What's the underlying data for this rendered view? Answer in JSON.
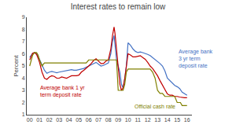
{
  "chart_data": {
    "type": "line",
    "title": "Interest rates to remain low",
    "ylabel": "Percent",
    "xlim": [
      -0.3,
      16.5
    ],
    "ylim": [
      1,
      9
    ],
    "yticks": [
      1,
      2,
      3,
      4,
      5,
      6,
      7,
      8,
      9
    ],
    "xticks": [
      {
        "value": 0,
        "label": "00"
      },
      {
        "value": 1,
        "label": "01"
      },
      {
        "value": 2,
        "label": "02"
      },
      {
        "value": 3,
        "label": "03"
      },
      {
        "value": 4,
        "label": "04"
      },
      {
        "value": 5,
        "label": "05"
      },
      {
        "value": 6,
        "label": "06"
      },
      {
        "value": 7,
        "label": "07"
      },
      {
        "value": 8,
        "label": "08"
      },
      {
        "value": 9,
        "label": "09"
      },
      10,
      11,
      12,
      13,
      14,
      15,
      16
    ],
    "grid": false,
    "series": [
      {
        "color": "#4472C4",
        "x": [
          0.0,
          0.15,
          0.3,
          0.5,
          0.7,
          0.85,
          1.0,
          1.25,
          1.5,
          1.75,
          2.0,
          2.25,
          2.5,
          2.75,
          3.0,
          3.25,
          3.5,
          3.75,
          4.0,
          4.25,
          4.5,
          4.75,
          5.0,
          5.25,
          5.5,
          5.75,
          6.0,
          6.25,
          6.5,
          6.75,
          7.0,
          7.25,
          7.5,
          7.75,
          8.0,
          8.25,
          8.42,
          8.58,
          8.67,
          8.83,
          9.0,
          9.17,
          9.33,
          9.5,
          9.67,
          9.83,
          10.0,
          10.25,
          10.5,
          10.75,
          11.0,
          11.25,
          11.5,
          11.75,
          12.0,
          12.25,
          12.5,
          12.75,
          13.0,
          13.25,
          13.5,
          13.75,
          14.0,
          14.25,
          14.5,
          14.75,
          15.0,
          15.25,
          15.5,
          15.75,
          16.0
        ],
        "values": [
          5.7,
          5.85,
          6.05,
          6.1,
          6.0,
          5.8,
          5.5,
          5.1,
          4.65,
          4.4,
          4.5,
          4.55,
          4.5,
          4.45,
          4.5,
          4.55,
          4.55,
          4.6,
          4.65,
          4.7,
          4.65,
          4.65,
          4.7,
          4.75,
          4.8,
          4.9,
          5.0,
          5.1,
          5.2,
          5.3,
          5.15,
          5.0,
          5.05,
          5.15,
          5.25,
          6.0,
          7.0,
          7.5,
          6.8,
          5.5,
          5.0,
          4.5,
          3.5,
          3.2,
          4.0,
          5.0,
          6.9,
          6.7,
          6.4,
          6.2,
          6.1,
          6.15,
          6.1,
          6.05,
          5.95,
          5.85,
          5.7,
          5.55,
          5.4,
          5.2,
          5.0,
          4.6,
          4.0,
          3.8,
          3.6,
          3.4,
          3.3,
          3.15,
          2.85,
          2.7,
          2.6
        ]
      },
      {
        "color": "#C00000",
        "x": [
          0.0,
          0.15,
          0.3,
          0.5,
          0.7,
          0.85,
          1.0,
          1.25,
          1.5,
          1.75,
          2.0,
          2.25,
          2.5,
          2.75,
          3.0,
          3.25,
          3.5,
          3.75,
          4.0,
          4.25,
          4.5,
          4.75,
          5.0,
          5.25,
          5.5,
          5.75,
          6.0,
          6.25,
          6.5,
          6.75,
          7.0,
          7.25,
          7.5,
          7.75,
          8.0,
          8.25,
          8.42,
          8.58,
          8.67,
          8.83,
          9.0,
          9.17,
          9.33,
          9.5,
          9.67,
          9.83,
          10.0,
          10.25,
          10.5,
          10.75,
          11.0,
          11.25,
          11.5,
          11.75,
          12.0,
          12.25,
          12.5,
          12.75,
          13.0,
          13.25,
          13.5,
          13.75,
          14.0,
          14.25,
          14.5,
          14.75,
          15.0,
          15.25,
          15.5,
          15.75,
          16.0
        ],
        "values": [
          5.5,
          5.75,
          6.05,
          6.1,
          5.95,
          5.65,
          5.3,
          4.5,
          4.0,
          3.9,
          4.1,
          4.2,
          4.15,
          4.0,
          4.0,
          4.1,
          4.05,
          4.0,
          4.1,
          4.2,
          4.2,
          4.2,
          4.25,
          4.5,
          4.65,
          4.8,
          5.0,
          5.2,
          5.45,
          5.6,
          5.4,
          5.2,
          5.2,
          5.4,
          5.5,
          6.4,
          7.5,
          8.2,
          7.7,
          6.3,
          4.7,
          3.5,
          3.0,
          3.2,
          4.0,
          5.0,
          6.0,
          5.9,
          5.75,
          5.75,
          5.8,
          5.85,
          5.7,
          5.55,
          5.3,
          5.0,
          4.8,
          4.5,
          4.2,
          3.8,
          3.4,
          3.0,
          2.7,
          2.6,
          2.6,
          2.5,
          2.5,
          2.45,
          2.4,
          2.4,
          2.4
        ]
      },
      {
        "color": "#808000",
        "x": [
          0.0,
          0.15,
          0.3,
          0.5,
          0.7,
          0.85,
          1.0,
          1.25,
          1.5,
          1.75,
          2.0,
          2.25,
          2.5,
          2.75,
          3.0,
          3.25,
          3.5,
          3.75,
          4.0,
          4.25,
          4.5,
          4.75,
          5.0,
          5.25,
          5.5,
          5.75,
          6.0,
          6.25,
          6.5,
          6.75,
          7.0,
          7.25,
          7.5,
          7.75,
          8.0,
          8.17,
          8.33,
          8.5,
          8.67,
          8.83,
          9.0,
          9.17,
          9.33,
          9.5,
          9.67,
          9.83,
          10.0,
          10.25,
          10.5,
          10.75,
          11.0,
          11.25,
          11.5,
          11.75,
          12.0,
          12.25,
          12.5,
          12.75,
          13.0,
          13.25,
          13.5,
          13.75,
          14.0,
          14.25,
          14.5,
          14.75,
          15.0,
          15.17,
          15.33,
          15.5,
          15.67,
          15.83,
          16.0
        ],
        "values": [
          5.0,
          5.5,
          5.9,
          6.1,
          6.1,
          5.9,
          5.5,
          5.0,
          5.25,
          5.25,
          5.25,
          5.25,
          5.25,
          5.25,
          5.25,
          5.25,
          5.25,
          5.25,
          5.25,
          5.25,
          5.25,
          5.25,
          5.25,
          5.25,
          5.25,
          5.25,
          5.5,
          5.5,
          5.5,
          5.5,
          5.5,
          5.5,
          5.5,
          5.5,
          5.5,
          5.5,
          5.5,
          5.5,
          5.5,
          5.5,
          3.0,
          3.0,
          3.0,
          3.0,
          3.5,
          4.5,
          4.75,
          4.75,
          4.75,
          4.75,
          4.75,
          4.75,
          4.75,
          4.75,
          4.75,
          4.75,
          4.5,
          4.0,
          3.0,
          2.75,
          2.75,
          2.5,
          2.5,
          2.5,
          2.5,
          2.5,
          2.0,
          2.0,
          2.0,
          1.75,
          1.75,
          1.75,
          1.75
        ]
      }
    ],
    "annotations": [
      {
        "text": "Average bank\n3 yr term\ndeposit rate",
        "x": 15.0,
        "y": 6.55,
        "color": "#4472C4"
      },
      {
        "text": "Average bank 1 yr\nterm deposit rate",
        "x": 0.9,
        "y": 3.6,
        "color": "#C00000"
      },
      {
        "text": "Official cash rate",
        "x": 10.5,
        "y": 2.05,
        "color": "#808000"
      }
    ]
  }
}
